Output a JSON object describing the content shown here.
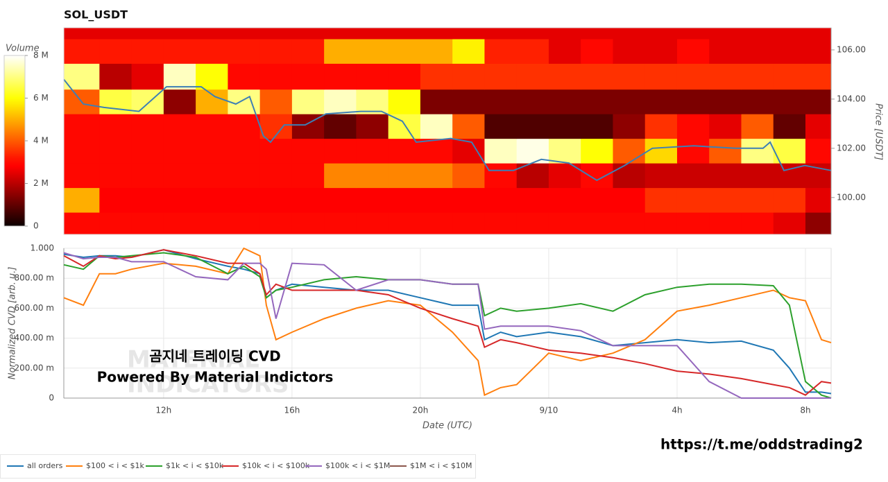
{
  "chart_data": [
    {
      "type": "heatmap",
      "title": "SOL_USDT",
      "colorbar_label": "Volume",
      "colormap": "hot",
      "zlim": [
        0,
        8
      ],
      "zticks": [
        0,
        {
          "value": 2,
          "label": "2 M"
        },
        {
          "value": 4,
          "label": "4 M"
        },
        {
          "value": 6,
          "label": "6 M"
        },
        {
          "value": 8,
          "label": "8 M"
        }
      ],
      "xlim": [
        8.89,
        32.8
      ],
      "x_bins": [
        8.89,
        10,
        11,
        12,
        13,
        14,
        15,
        16,
        17,
        18,
        19,
        20,
        21,
        22,
        23,
        24,
        25,
        26,
        27,
        28,
        29,
        30,
        31,
        32,
        32.8
      ],
      "y_bins": [
        98.5,
        99.4,
        100.4,
        101.4,
        102.4,
        103.4,
        104.4,
        105.45,
        106.45,
        106.9
      ],
      "z": [
        [
          3,
          3,
          3,
          3,
          3,
          3,
          3,
          3,
          3,
          3,
          3,
          3,
          3,
          3,
          3,
          3,
          3,
          3,
          3,
          3,
          3,
          3,
          2.5,
          1.5
        ],
        [
          5,
          2.8,
          2.8,
          2.8,
          2.8,
          2.8,
          2.8,
          2.8,
          2.8,
          2.8,
          2.8,
          2.8,
          2.8,
          2.8,
          2.8,
          2.8,
          2.8,
          2.8,
          3.5,
          3.5,
          3.5,
          3.5,
          3.5,
          2.5
        ],
        [
          3,
          3,
          3,
          3,
          3,
          3,
          3,
          3,
          4.5,
          4.5,
          4.5,
          4.5,
          4,
          3,
          2,
          2.5,
          3,
          2,
          2.2,
          2.2,
          2.2,
          2.2,
          2.2,
          2.2
        ],
        [
          3,
          3,
          3,
          3,
          3,
          3,
          3,
          3,
          3,
          3,
          3,
          3,
          2.5,
          7.5,
          7.8,
          7,
          6,
          4,
          5.5,
          3,
          4,
          7,
          6.5,
          3
        ],
        [
          3,
          3,
          3,
          3,
          3,
          3,
          3.5,
          1.5,
          1,
          1.5,
          6.5,
          7.5,
          4,
          0.8,
          0.8,
          0.8,
          0.8,
          1.5,
          3.5,
          3,
          2.5,
          4,
          1,
          2.5
        ],
        [
          4,
          6.5,
          6.8,
          1.5,
          5,
          7,
          4,
          7,
          7.5,
          7,
          6,
          1.3,
          1.3,
          1.3,
          1.3,
          1.3,
          1.3,
          1.3,
          1.3,
          1.3,
          1.3,
          1.3,
          1.3,
          1.3
        ],
        [
          7,
          2,
          2.5,
          7.5,
          6,
          3,
          3,
          3,
          3,
          3,
          3,
          3.5,
          3.5,
          3.5,
          3.5,
          3.5,
          3.5,
          3.5,
          3.5,
          3.5,
          3.5,
          3.5,
          3.5,
          3.5
        ],
        [
          3.2,
          3.2,
          3.2,
          3.2,
          3.2,
          3.2,
          3.2,
          3.2,
          5,
          5,
          5,
          5,
          5.8,
          3.3,
          3.3,
          2.5,
          3,
          2.5,
          2.5,
          3,
          2.5,
          2.5,
          2.5,
          2.5
        ],
        [
          2.5,
          2.5,
          2.5,
          2.5,
          2.5,
          2.5,
          2.5,
          2.5,
          2.5,
          2.5,
          2.5,
          2.5,
          2.5,
          2.5,
          2.5,
          2.5,
          2.5,
          2.5,
          2.5,
          2.5,
          2.5,
          2.5,
          2.5,
          2.5
        ]
      ],
      "ylabel": "Price [USDT]",
      "yaxis_side": "right",
      "ylim": [
        98.5,
        106.9
      ],
      "yticks": [
        {
          "value": 100,
          "label": "100.00"
        },
        {
          "value": 102,
          "label": "102.00"
        },
        {
          "value": 104,
          "label": "104.00"
        },
        {
          "value": 106,
          "label": "106.00"
        }
      ],
      "price_line": {
        "color": "#3d7fb5",
        "x": [
          8.89,
          9.5,
          10.14,
          11.23,
          12.09,
          13.17,
          13.6,
          14.25,
          14.68,
          15.11,
          15.33,
          15.76,
          16.41,
          17.06,
          18.14,
          18.79,
          19.44,
          19.87,
          20.95,
          21.6,
          22.14,
          22.9,
          23.77,
          24.63,
          25.5,
          26.36,
          27.23,
          28.52,
          29.82,
          30.68,
          30.9,
          31.33,
          31.98,
          32.8
        ],
        "values": [
          104.8,
          103.8,
          103.66,
          103.5,
          104.5,
          104.5,
          104.1,
          103.8,
          104.1,
          102.5,
          102.25,
          102.95,
          102.95,
          103.4,
          103.5,
          103.5,
          103.1,
          102.25,
          102.4,
          102.25,
          101.1,
          101.1,
          101.55,
          101.4,
          100.7,
          101.3,
          102.0,
          102.1,
          102.0,
          102.0,
          102.25,
          101.1,
          101.3,
          101.1
        ]
      }
    },
    {
      "type": "line",
      "xlabel": "Date (UTC)",
      "ylabel": "Normalized CVD [arb. u.]",
      "grid": true,
      "legend": "bottom",
      "xlim": [
        8.89,
        32.8
      ],
      "xticks": [
        {
          "value": 12,
          "label": "12h"
        },
        {
          "value": 16,
          "label": "16h"
        },
        {
          "value": 20,
          "label": "20h"
        },
        {
          "value": 24,
          "label": "9/10"
        },
        {
          "value": 28,
          "label": "4h"
        },
        {
          "value": 32,
          "label": "8h"
        }
      ],
      "ylim": [
        0,
        1
      ],
      "yticks": [
        0,
        {
          "value": 0.2,
          "label": "200.00 m"
        },
        {
          "value": 0.4,
          "label": "400.00 m"
        },
        {
          "value": 0.6,
          "label": "600.00 m"
        },
        {
          "value": 0.8,
          "label": "800.00 m"
        },
        {
          "value": 1,
          "label": "1.000"
        }
      ],
      "x": [
        8.89,
        9.5,
        10,
        10.5,
        11,
        12,
        13,
        14,
        14.5,
        15,
        15.2,
        15.5,
        16,
        17,
        18,
        19,
        20,
        21,
        21.8,
        22,
        22.5,
        23,
        24,
        25,
        26,
        27,
        28,
        29,
        30,
        31,
        31.5,
        32,
        32.5,
        32.8
      ],
      "series": [
        {
          "name": "all orders",
          "color": "#1f77b4",
          "values": [
            0.96,
            0.94,
            0.95,
            0.95,
            0.94,
            0.99,
            0.93,
            0.88,
            0.86,
            0.83,
            0.67,
            0.72,
            0.76,
            0.74,
            0.72,
            0.72,
            0.67,
            0.62,
            0.62,
            0.39,
            0.44,
            0.41,
            0.44,
            0.41,
            0.35,
            0.37,
            0.39,
            0.37,
            0.38,
            0.32,
            0.2,
            0.04,
            0.04,
            0.03
          ]
        },
        {
          "name": "$100 < i < $1k",
          "color": "#ff7f0e",
          "values": [
            0.67,
            0.62,
            0.83,
            0.83,
            0.86,
            0.9,
            0.88,
            0.83,
            1.0,
            0.95,
            0.62,
            0.39,
            0.44,
            0.53,
            0.6,
            0.65,
            0.62,
            0.44,
            0.25,
            0.02,
            0.07,
            0.09,
            0.3,
            0.25,
            0.3,
            0.39,
            0.58,
            0.62,
            0.67,
            0.72,
            0.67,
            0.65,
            0.39,
            0.37
          ]
        },
        {
          "name": "$1k < i < $10k",
          "color": "#2ca02c",
          "values": [
            0.89,
            0.86,
            0.95,
            0.94,
            0.95,
            0.97,
            0.94,
            0.83,
            0.88,
            0.81,
            0.67,
            0.72,
            0.74,
            0.79,
            0.81,
            0.79,
            0.79,
            0.76,
            0.76,
            0.55,
            0.6,
            0.58,
            0.6,
            0.63,
            0.58,
            0.69,
            0.74,
            0.76,
            0.76,
            0.75,
            0.62,
            0.11,
            0.02,
            0
          ]
        },
        {
          "name": "$10k < i < $100k",
          "color": "#d62728",
          "values": [
            0.95,
            0.88,
            0.95,
            0.93,
            0.94,
            0.99,
            0.95,
            0.9,
            0.9,
            0.83,
            0.69,
            0.76,
            0.72,
            0.72,
            0.72,
            0.69,
            0.6,
            0.53,
            0.48,
            0.34,
            0.39,
            0.37,
            0.32,
            0.3,
            0.27,
            0.23,
            0.18,
            0.16,
            0.13,
            0.09,
            0.07,
            0.02,
            0.11,
            0.1
          ]
        },
        {
          "name": "$100k < i < $1M",
          "color": "#9467bd",
          "values": [
            0.97,
            0.93,
            0.94,
            0.94,
            0.91,
            0.91,
            0.81,
            0.79,
            0.9,
            0.9,
            0.86,
            0.53,
            0.9,
            0.89,
            0.72,
            0.79,
            0.79,
            0.76,
            0.76,
            0.46,
            0.48,
            0.48,
            0.48,
            0.45,
            0.35,
            0.35,
            0.35,
            0.11,
            0,
            0,
            0,
            0,
            0,
            0
          ]
        },
        {
          "name": "$1M < i < $10M",
          "color": "#8c564b",
          "values": [
            null,
            null,
            null,
            null,
            null,
            null,
            null,
            null,
            null,
            null,
            null,
            null,
            null,
            null,
            null,
            null,
            null,
            null,
            null,
            null,
            null,
            null,
            null,
            null,
            null,
            null,
            null,
            null,
            null,
            null,
            null,
            null,
            null,
            null
          ]
        }
      ],
      "annotations": [
        "곰지네 트레이딩 CVD",
        "Powered By Material Indictors"
      ],
      "watermark": [
        "MATERIAL",
        "INDICATORS"
      ]
    }
  ],
  "link": "https://t.me/oddstrading2"
}
